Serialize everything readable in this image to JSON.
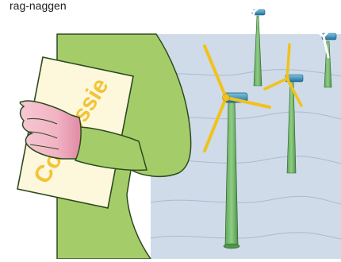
{
  "caption": "rag-naggen",
  "document": {
    "stamp_text": "Concessie"
  },
  "colors": {
    "sea": "#cfdbe8",
    "sea_line": "#9fb3c7",
    "figure": "#a4cd6a",
    "figure_dark": "#2d4a1e",
    "hand": "#f2b3c3",
    "paper": "#fdf7dc",
    "stamp": "#f2c230",
    "turbine": "#7dbf74",
    "nacelle": "#2f8fbf",
    "blade": "#f1c21b"
  }
}
